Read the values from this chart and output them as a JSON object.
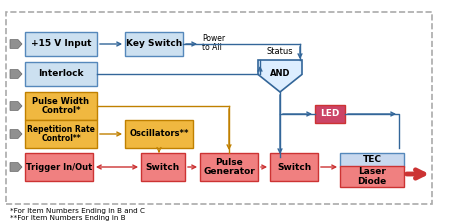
{
  "bg_color": "#ffffff",
  "colors": {
    "blue_box_face": "#cce0f0",
    "blue_box_edge": "#5588bb",
    "gold_box_face": "#f0b840",
    "gold_box_edge": "#c08000",
    "red_box_face": "#f08080",
    "red_box_edge": "#cc3333",
    "led_face": "#cc4466",
    "led_edge": "#cc3333",
    "tec_face": "#c8d8ee",
    "tec_edge": "#5588bb",
    "arrow_blue": "#336699",
    "arrow_gold": "#c08000",
    "arrow_red": "#cc3333",
    "and_fill": "#ddeeff",
    "and_stroke": "#336699",
    "gray": "#888888",
    "dashed": "#aaaaaa"
  },
  "footnote1": "*For Item Numbers Ending in B and C",
  "footnote2": "**For Item Numbers Ending in B",
  "status_label": "Status",
  "power_label": "Power\nto All"
}
